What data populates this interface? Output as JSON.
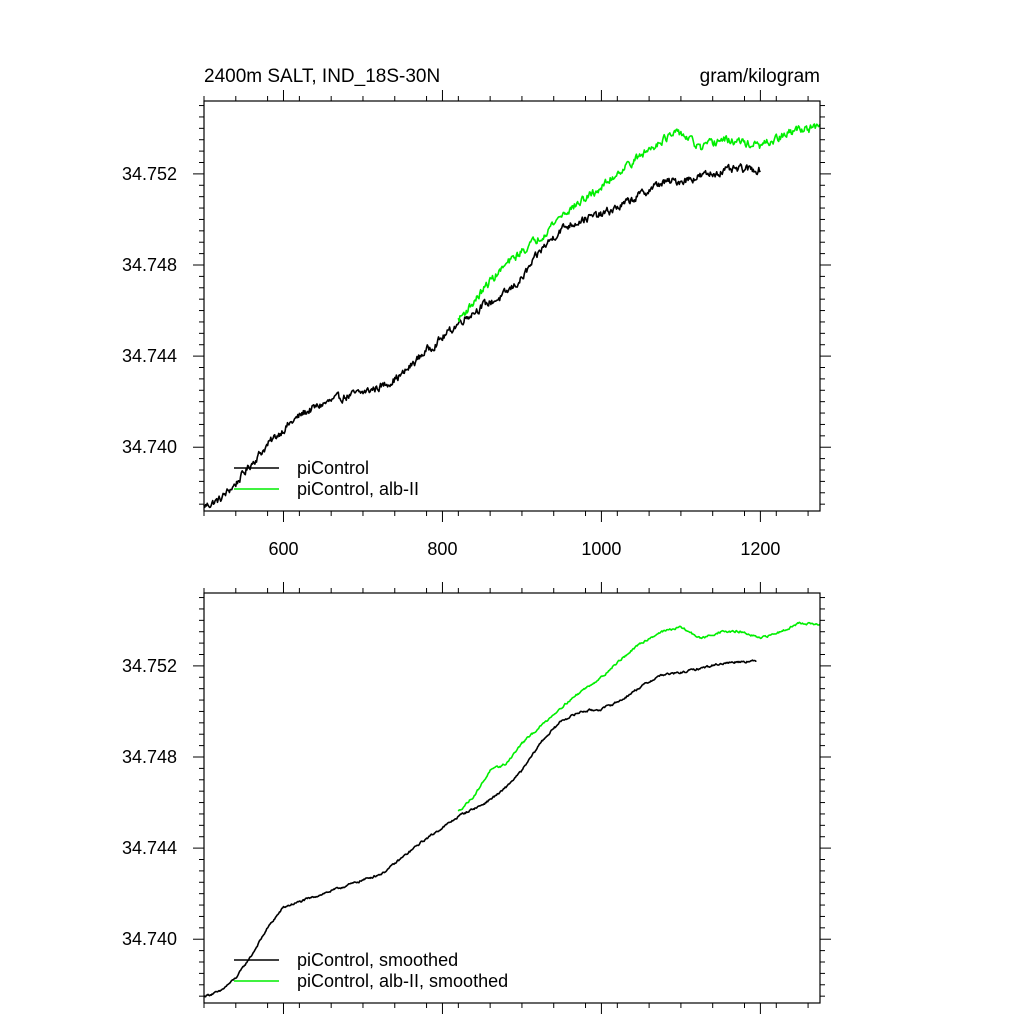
{
  "colors": {
    "black": "#000000",
    "green": "#00ee00"
  },
  "chart_data": [
    {
      "type": "line",
      "title": "2400m SALT, IND_18S-30N",
      "units": "gram/kilogram",
      "xlabel": "",
      "ylabel": "",
      "xlim": [
        500,
        1275
      ],
      "ylim": [
        34.7372,
        34.7552
      ],
      "xticks": [
        600,
        800,
        1000,
        1200
      ],
      "xtick_labels": [
        "600",
        "800",
        "1000",
        "1200"
      ],
      "yticks": [
        34.74,
        34.744,
        34.748,
        34.752
      ],
      "ytick_labels": [
        "34.740",
        "34.744",
        "34.748",
        "34.752"
      ],
      "show_xtick_labels": true,
      "legend_position": "bottom-left",
      "series": [
        {
          "name": "piControl",
          "color": "#000000",
          "noise": 0.0003,
          "x": [
            500,
            520,
            540,
            560,
            580,
            600,
            625,
            650,
            675,
            700,
            725,
            750,
            775,
            800,
            825,
            850,
            875,
            900,
            925,
            950,
            975,
            1000,
            1025,
            1050,
            1075,
            1100,
            1125,
            1150,
            1175,
            1200
          ],
          "y": [
            34.7374,
            34.7377,
            34.7384,
            34.7393,
            34.7401,
            34.7408,
            34.7415,
            34.7419,
            34.7422,
            34.7424,
            34.7427,
            34.7432,
            34.7441,
            34.7448,
            34.7456,
            34.7462,
            34.7466,
            34.7474,
            34.7487,
            34.7496,
            34.75,
            34.7502,
            34.7506,
            34.7511,
            34.7516,
            34.7517,
            34.7519,
            34.7521,
            34.7522,
            34.7522
          ]
        },
        {
          "name": "piControl, alb-II",
          "color": "#00ee00",
          "noise": 0.0003,
          "x": [
            820,
            840,
            860,
            880,
            900,
            925,
            950,
            975,
            1000,
            1025,
            1050,
            1075,
            1100,
            1125,
            1150,
            1175,
            1200,
            1225,
            1250,
            1275
          ],
          "y": [
            34.7456,
            34.7464,
            34.7473,
            34.748,
            34.7486,
            34.7493,
            34.7502,
            34.7508,
            34.7514,
            34.7522,
            34.7528,
            34.7535,
            34.7538,
            34.7531,
            34.7535,
            34.7534,
            34.7532,
            34.7536,
            34.754,
            34.754
          ]
        }
      ]
    },
    {
      "type": "line",
      "title": "",
      "units": "",
      "xlabel": "",
      "ylabel": "",
      "xlim": [
        500,
        1275
      ],
      "ylim": [
        34.7372,
        34.7552
      ],
      "xticks": [
        600,
        800,
        1000,
        1200
      ],
      "xtick_labels": [],
      "yticks": [
        34.74,
        34.744,
        34.748,
        34.752
      ],
      "ytick_labels": [
        "34.740",
        "34.744",
        "34.748",
        "34.752"
      ],
      "show_xtick_labels": false,
      "legend_position": "bottom-left",
      "series": [
        {
          "name": "piControl, smoothed",
          "color": "#000000",
          "noise": 8e-05,
          "x": [
            500,
            520,
            540,
            560,
            580,
            600,
            625,
            650,
            675,
            700,
            725,
            750,
            775,
            800,
            825,
            850,
            875,
            900,
            925,
            950,
            975,
            1000,
            1025,
            1050,
            1075,
            1100,
            1125,
            1150,
            1175,
            1195
          ],
          "y": [
            34.7375,
            34.7377,
            34.7383,
            34.7393,
            34.7405,
            34.7414,
            34.7417,
            34.742,
            34.7423,
            34.7426,
            34.7429,
            34.7436,
            34.7443,
            34.7449,
            34.7455,
            34.7459,
            34.7465,
            34.7474,
            34.7487,
            34.7496,
            34.75,
            34.7501,
            34.7505,
            34.7511,
            34.7516,
            34.7517,
            34.7519,
            34.7521,
            34.7522,
            34.7522
          ]
        },
        {
          "name": "piControl, alb-II, smoothed",
          "color": "#00ee00",
          "noise": 8e-05,
          "x": [
            820,
            840,
            860,
            880,
            900,
            925,
            950,
            975,
            1000,
            1025,
            1050,
            1075,
            1100,
            1125,
            1150,
            1175,
            1200,
            1225,
            1250,
            1275
          ],
          "y": [
            34.7456,
            34.7463,
            34.7474,
            34.7477,
            34.7486,
            34.7494,
            34.7502,
            34.7509,
            34.7515,
            34.7523,
            34.753,
            34.7535,
            34.7537,
            34.7532,
            34.7535,
            34.7535,
            34.7532,
            34.7535,
            34.7539,
            34.7538
          ]
        }
      ]
    }
  ]
}
